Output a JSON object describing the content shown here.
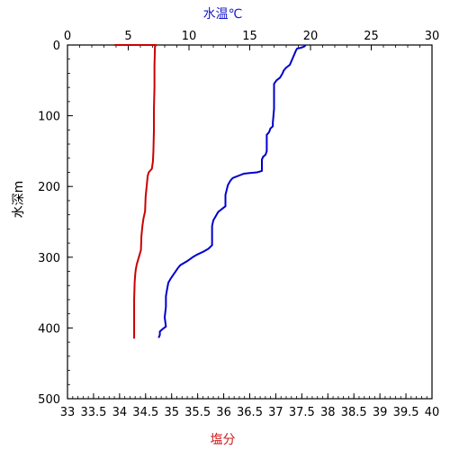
{
  "chart_data": {
    "type": "line",
    "title": "",
    "axes": {
      "top": {
        "label": "水温℃",
        "range": [
          0,
          30
        ],
        "ticks": [
          "0",
          "5",
          "10",
          "15",
          "20",
          "25",
          "30"
        ],
        "color": "#1a1acc"
      },
      "bottom": {
        "label": "塩分",
        "range": [
          33,
          40
        ],
        "ticks": [
          "33",
          "33.5",
          "34",
          "34.5",
          "35",
          "35.5",
          "36",
          "36.5",
          "37",
          "37.5",
          "38",
          "38.5",
          "39",
          "39.5",
          "40"
        ],
        "color": "#cc1a1a"
      },
      "left": {
        "label": "水深m",
        "range": [
          0,
          500
        ],
        "inverted": true,
        "ticks": [
          "0",
          "100",
          "200",
          "300",
          "400",
          "500"
        ]
      }
    },
    "grid": false,
    "series": [
      {
        "axis": "top",
        "color": "#0000cc",
        "points": [
          [
            19.6,
            0
          ],
          [
            19.5,
            2
          ],
          [
            19.2,
            4
          ],
          [
            18.9,
            5
          ],
          [
            18.8,
            8
          ],
          [
            18.7,
            12
          ],
          [
            18.6,
            16
          ],
          [
            18.5,
            20
          ],
          [
            18.4,
            24
          ],
          [
            18.3,
            28
          ],
          [
            18.0,
            32
          ],
          [
            17.8,
            36
          ],
          [
            17.7,
            40
          ],
          [
            17.5,
            46
          ],
          [
            17.2,
            50
          ],
          [
            17.0,
            55
          ],
          [
            17.0,
            70
          ],
          [
            17.0,
            90
          ],
          [
            16.9,
            110
          ],
          [
            16.9,
            115
          ],
          [
            16.7,
            118
          ],
          [
            16.6,
            123
          ],
          [
            16.4,
            127
          ],
          [
            16.4,
            145
          ],
          [
            16.4,
            150
          ],
          [
            16.3,
            155
          ],
          [
            16.1,
            158
          ],
          [
            16.0,
            162
          ],
          [
            16.0,
            178
          ],
          [
            15.6,
            180
          ],
          [
            15.0,
            181
          ],
          [
            14.5,
            182
          ],
          [
            14.2,
            184
          ],
          [
            13.9,
            186
          ],
          [
            13.6,
            188
          ],
          [
            13.4,
            192
          ],
          [
            13.2,
            198
          ],
          [
            13.1,
            205
          ],
          [
            13.0,
            212
          ],
          [
            13.0,
            220
          ],
          [
            13.0,
            228
          ],
          [
            12.7,
            232
          ],
          [
            12.4,
            236
          ],
          [
            12.2,
            242
          ],
          [
            12.0,
            248
          ],
          [
            11.9,
            256
          ],
          [
            11.9,
            270
          ],
          [
            11.9,
            283
          ],
          [
            11.6,
            288
          ],
          [
            11.2,
            292
          ],
          [
            10.7,
            296
          ],
          [
            10.3,
            300
          ],
          [
            9.9,
            305
          ],
          [
            9.6,
            308
          ],
          [
            9.3,
            311
          ],
          [
            9.1,
            315
          ],
          [
            8.9,
            320
          ],
          [
            8.7,
            325
          ],
          [
            8.5,
            330
          ],
          [
            8.3,
            336
          ],
          [
            8.2,
            345
          ],
          [
            8.1,
            355
          ],
          [
            8.1,
            370
          ],
          [
            8.0,
            385
          ],
          [
            8.1,
            398
          ],
          [
            7.8,
            402
          ],
          [
            7.6,
            405
          ],
          [
            7.6,
            410
          ],
          [
            7.5,
            414
          ]
        ]
      },
      {
        "axis": "bottom",
        "color": "#cc0000",
        "points": [
          [
            33.9,
            0
          ],
          [
            34.7,
            0
          ],
          [
            34.68,
            2
          ],
          [
            34.67,
            30
          ],
          [
            34.67,
            60
          ],
          [
            34.66,
            90
          ],
          [
            34.66,
            120
          ],
          [
            34.65,
            150
          ],
          [
            34.64,
            165
          ],
          [
            34.62,
            175
          ],
          [
            34.56,
            180
          ],
          [
            34.54,
            185
          ],
          [
            34.52,
            200
          ],
          [
            34.5,
            215
          ],
          [
            34.49,
            235
          ],
          [
            34.46,
            245
          ],
          [
            34.45,
            250
          ],
          [
            34.44,
            255
          ],
          [
            34.42,
            270
          ],
          [
            34.41,
            290
          ],
          [
            34.37,
            300
          ],
          [
            34.33,
            310
          ],
          [
            34.31,
            318
          ],
          [
            34.3,
            325
          ],
          [
            34.29,
            335
          ],
          [
            34.28,
            360
          ],
          [
            34.28,
            385
          ],
          [
            34.28,
            415
          ]
        ]
      }
    ]
  }
}
